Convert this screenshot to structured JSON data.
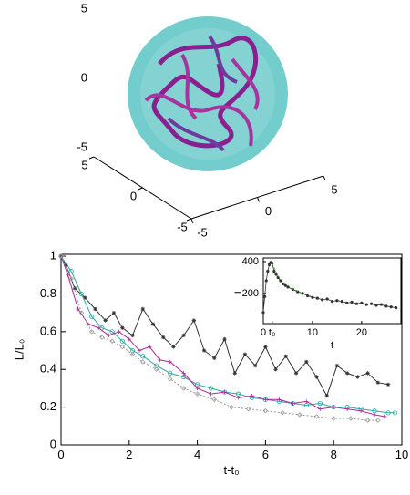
{
  "chart_data": [
    {
      "type": "surface3d",
      "zlim": [
        -5,
        5
      ],
      "zticks": [
        5,
        0,
        -5
      ],
      "xlim": [
        -5,
        5
      ],
      "xticks": [
        5,
        0,
        -5
      ],
      "ylim": [
        -5,
        5
      ],
      "yticks": [
        -5,
        0,
        5
      ]
    },
    {
      "type": "line",
      "xlabel": "t-t₀",
      "ylabel": "L/L₀",
      "xlim": [
        0,
        10
      ],
      "ylim": [
        0,
        1.01
      ],
      "xticks": [
        0,
        2,
        4,
        6,
        8,
        10
      ],
      "yticks": [
        0,
        0.2,
        0.4,
        0.6,
        0.8,
        1
      ],
      "series": [
        {
          "color": "#333333",
          "marker": "star",
          "dash": "none",
          "x": [
            0,
            0.15,
            0.4,
            0.7,
            1,
            1.3,
            1.55,
            1.8,
            2.1,
            2.4,
            2.7,
            3,
            3.3,
            3.6,
            3.9,
            4.2,
            4.5,
            4.8,
            5.1,
            5.4,
            5.7,
            6,
            6.3,
            6.6,
            6.9,
            7.2,
            7.5,
            7.8,
            8.1,
            8.4,
            8.7,
            9,
            9.3,
            9.6
          ],
          "values": [
            1,
            0.95,
            0.83,
            0.78,
            0.72,
            0.66,
            0.7,
            0.62,
            0.58,
            0.72,
            0.64,
            0.57,
            0.52,
            0.58,
            0.66,
            0.5,
            0.46,
            0.56,
            0.38,
            0.48,
            0.42,
            0.52,
            0.4,
            0.47,
            0.38,
            0.44,
            0.36,
            0.26,
            0.42,
            0.38,
            0.36,
            0.38,
            0.33,
            0.32
          ]
        },
        {
          "color": "#2aa7a0",
          "marker": "circle",
          "dash": "none",
          "x": [
            0,
            0.3,
            0.6,
            0.9,
            1.2,
            1.5,
            1.8,
            2.1,
            2.4,
            2.8,
            3.2,
            3.6,
            4,
            4.4,
            4.8,
            5.2,
            5.6,
            6,
            6.4,
            6.8,
            7.2,
            7.6,
            8,
            8.4,
            8.8,
            9.2,
            9.6,
            9.8
          ],
          "values": [
            1,
            0.92,
            0.8,
            0.68,
            0.62,
            0.6,
            0.55,
            0.5,
            0.47,
            0.42,
            0.38,
            0.36,
            0.32,
            0.3,
            0.28,
            0.27,
            0.25,
            0.24,
            0.23,
            0.22,
            0.21,
            0.22,
            0.2,
            0.2,
            0.19,
            0.18,
            0.17,
            0.17
          ]
        },
        {
          "color": "#b0279c",
          "marker": "plus",
          "dash": "none",
          "x": [
            0,
            0.2,
            0.5,
            0.8,
            1.1,
            1.4,
            1.7,
            2,
            2.3,
            2.6,
            2.9,
            3.2,
            3.6,
            4,
            4.4,
            4.8,
            5.2,
            5.6,
            6,
            6.4,
            6.8,
            7.2,
            7.6,
            8,
            8.4,
            8.8,
            9.2,
            9.5
          ],
          "values": [
            1,
            0.9,
            0.72,
            0.64,
            0.62,
            0.58,
            0.6,
            0.56,
            0.5,
            0.52,
            0.45,
            0.44,
            0.38,
            0.3,
            0.27,
            0.28,
            0.25,
            0.26,
            0.24,
            0.24,
            0.22,
            0.23,
            0.19,
            0.2,
            0.19,
            0.18,
            0.16,
            0.15
          ]
        },
        {
          "color": "#999999",
          "marker": "diamond",
          "dash": "2,2",
          "x": [
            0,
            0.3,
            0.6,
            0.9,
            1.2,
            1.5,
            1.8,
            2.1,
            2.4,
            2.8,
            3.2,
            3.6,
            4,
            4.5,
            5,
            5.5,
            6,
            6.5,
            7,
            7.5,
            8,
            8.5,
            9,
            9.3
          ],
          "values": [
            1,
            0.88,
            0.7,
            0.6,
            0.57,
            0.55,
            0.52,
            0.48,
            0.44,
            0.4,
            0.35,
            0.3,
            0.27,
            0.24,
            0.2,
            0.19,
            0.18,
            0.17,
            0.16,
            0.15,
            0.14,
            0.14,
            0.13,
            0.13
          ]
        }
      ]
    },
    {
      "type": "line",
      "xlabel": "t",
      "ylabel": "L",
      "xlim": [
        0,
        28
      ],
      "ylim": [
        10,
        423
      ],
      "xticks": [
        0,
        {
          "value": 1.8,
          "label": "t₀"
        },
        10,
        20
      ],
      "yticks": [
        200,
        400
      ],
      "series": [
        {
          "color": "#333333",
          "marker": "dot",
          "dash": "none",
          "x": [
            0,
            0.3,
            0.6,
            0.9,
            1.2,
            1.5,
            1.8,
            2.2,
            2.6,
            3,
            3.5,
            4,
            4.5,
            5,
            6,
            7,
            8,
            9,
            10,
            11,
            12,
            13,
            14,
            15,
            16,
            17,
            18,
            19,
            20,
            21,
            22,
            23,
            24,
            25,
            26,
            27
          ],
          "values": [
            80,
            180,
            280,
            340,
            380,
            395,
            390,
            340,
            320,
            300,
            280,
            260,
            250,
            240,
            225,
            210,
            200,
            185,
            175,
            170,
            160,
            165,
            150,
            155,
            150,
            140,
            145,
            135,
            140,
            130,
            135,
            125,
            130,
            120,
            115,
            110
          ]
        },
        {
          "color": "#49b23a",
          "marker": "none",
          "dash": "3,2",
          "x": [
            1.8,
            3,
            4,
            5,
            6,
            7,
            8,
            9,
            10
          ],
          "values": [
            390,
            310,
            275,
            250,
            232,
            215,
            200,
            190,
            180
          ]
        }
      ]
    }
  ]
}
